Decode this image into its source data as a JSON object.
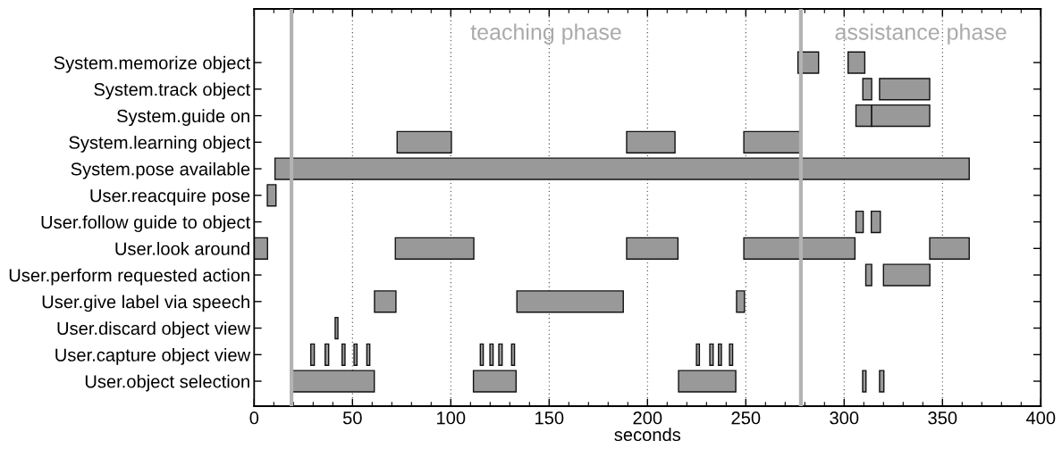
{
  "chart_data": {
    "type": "bar",
    "orientation": "horizontal",
    "categories": [
      "System.memorize object",
      "System.track object",
      "System.guide on",
      "System.learning object",
      "System.pose available",
      "User.reacquire pose",
      "User.follow guide to object",
      "User.look around",
      "User.perform requested action",
      "User.give label via speech",
      "User.discard object view",
      "User.capture object view",
      "User.object selection"
    ],
    "series": [
      {
        "color": "#999999",
        "base": [
          276.5,
          309.5,
          306,
          72.7,
          10.6,
          6.7,
          306,
          0,
          311,
          61.2,
          41.2,
          28.8,
          19.1
        ],
        "values": [
          10.5,
          4.5,
          8,
          27.6,
          353,
          4.4,
          3.7,
          6.8,
          3,
          10.9,
          1.4,
          1.8,
          42
        ]
      },
      {
        "color": "#999999",
        "base": [
          302,
          318,
          314,
          189.4,
          null,
          null,
          313.8,
          71.8,
          320,
          133.6,
          null,
          36.1,
          111.5
        ],
        "values": [
          8.5,
          25.5,
          29.5,
          24.6,
          null,
          null,
          4.6,
          39.9,
          23.6,
          54.1,
          null,
          1.8,
          21.7
        ]
      },
      {
        "color": "#999999",
        "base": [
          null,
          null,
          null,
          249,
          null,
          null,
          null,
          189.4,
          null,
          245.3,
          null,
          44.7,
          215.8
        ],
        "values": [
          null,
          null,
          null,
          29,
          null,
          null,
          null,
          26.1,
          null,
          4,
          null,
          1.5,
          29.1
        ]
      },
      {
        "color": "#999999",
        "base": [
          null,
          null,
          null,
          null,
          null,
          null,
          null,
          249,
          null,
          null,
          null,
          50.8,
          309.4
        ],
        "values": [
          null,
          null,
          null,
          null,
          null,
          null,
          null,
          56.5,
          null,
          null,
          null,
          1.5,
          1.7
        ]
      },
      {
        "color": "#999999",
        "base": [
          null,
          null,
          null,
          null,
          null,
          null,
          null,
          343.5,
          null,
          null,
          null,
          57.3,
          318
        ],
        "values": [
          null,
          null,
          null,
          null,
          null,
          null,
          null,
          20.1,
          null,
          null,
          null,
          1.5,
          2.2
        ]
      },
      {
        "color": "#999999",
        "base": [
          null,
          null,
          null,
          null,
          null,
          null,
          null,
          null,
          null,
          null,
          null,
          115,
          null
        ],
        "values": [
          null,
          null,
          null,
          null,
          null,
          null,
          null,
          null,
          null,
          null,
          null,
          1.5,
          null
        ]
      },
      {
        "color": "#999999",
        "base": [
          null,
          null,
          null,
          null,
          null,
          null,
          null,
          null,
          null,
          null,
          null,
          119.9,
          null
        ],
        "values": [
          null,
          null,
          null,
          null,
          null,
          null,
          null,
          null,
          null,
          null,
          null,
          1.6,
          null
        ]
      },
      {
        "color": "#999999",
        "base": [
          null,
          null,
          null,
          null,
          null,
          null,
          null,
          null,
          null,
          null,
          null,
          124.4,
          null
        ],
        "values": [
          null,
          null,
          null,
          null,
          null,
          null,
          null,
          null,
          null,
          null,
          null,
          1.7,
          null
        ]
      },
      {
        "color": "#999999",
        "base": [
          null,
          null,
          null,
          null,
          null,
          null,
          null,
          null,
          null,
          null,
          null,
          130.9,
          null
        ],
        "values": [
          null,
          null,
          null,
          null,
          null,
          null,
          null,
          null,
          null,
          null,
          null,
          1.5,
          null
        ]
      },
      {
        "color": "#999999",
        "base": [
          null,
          null,
          null,
          null,
          null,
          null,
          null,
          null,
          null,
          null,
          null,
          224.9,
          null
        ],
        "values": [
          null,
          null,
          null,
          null,
          null,
          null,
          null,
          null,
          null,
          null,
          null,
          1.5,
          null
        ]
      },
      {
        "color": "#999999",
        "base": [
          null,
          null,
          null,
          null,
          null,
          null,
          null,
          null,
          null,
          null,
          null,
          231.7,
          null
        ],
        "values": [
          null,
          null,
          null,
          null,
          null,
          null,
          null,
          null,
          null,
          null,
          null,
          1.7,
          null
        ]
      },
      {
        "color": "#999999",
        "base": [
          null,
          null,
          null,
          null,
          null,
          null,
          null,
          null,
          null,
          null,
          null,
          236.1,
          null
        ],
        "values": [
          null,
          null,
          null,
          null,
          null,
          null,
          null,
          null,
          null,
          null,
          null,
          1.5,
          null
        ]
      },
      {
        "color": "#999999",
        "base": [
          null,
          null,
          null,
          null,
          null,
          null,
          null,
          null,
          null,
          null,
          null,
          241.7,
          null
        ],
        "values": [
          null,
          null,
          null,
          null,
          null,
          null,
          null,
          null,
          null,
          null,
          null,
          1.6,
          null
        ]
      }
    ],
    "xlim": [
      0,
      400
    ],
    "xticks": [
      0,
      50,
      100,
      150,
      200,
      250,
      300,
      350,
      400
    ],
    "xlabel": "seconds",
    "grid": "x",
    "ref_lines": [
      {
        "axis": "x",
        "value": 19,
        "color": "#b3b3b3"
      },
      {
        "axis": "x",
        "value": 278,
        "color": "#b3b3b3"
      }
    ],
    "annotations": [
      "teaching phase",
      "assistance phase"
    ]
  }
}
